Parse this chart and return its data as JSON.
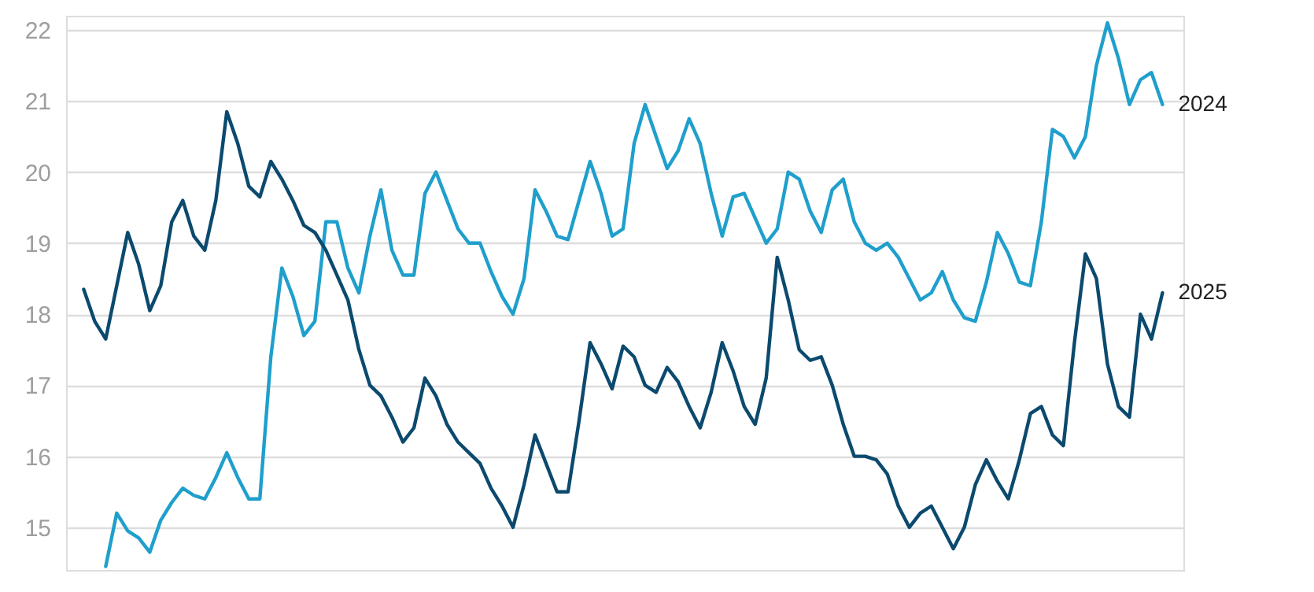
{
  "chart_data": {
    "type": "line",
    "categories": [
      null,
      null,
      null,
      null,
      null,
      null,
      null,
      null,
      null,
      null,
      null,
      null,
      null,
      null,
      null,
      null,
      null,
      null,
      null,
      null,
      null,
      null,
      null,
      null,
      null,
      null,
      null,
      null,
      null,
      null,
      null,
      null,
      null,
      null,
      null,
      null,
      null,
      null,
      null,
      null,
      null,
      null,
      null,
      null,
      null,
      null,
      null,
      null,
      null,
      null,
      null,
      null,
      null,
      null,
      null,
      null,
      null,
      null,
      null,
      null,
      null,
      null,
      null,
      null,
      null,
      null,
      null,
      null,
      null,
      null,
      null,
      null,
      null,
      null,
      null,
      null,
      null,
      null,
      null,
      null,
      null,
      null,
      null,
      null,
      null,
      null,
      null,
      null,
      null,
      null,
      null,
      null,
      null,
      null,
      null,
      null,
      null,
      null,
      null
    ],
    "series": [
      {
        "name": "2024",
        "color": "#1f9fcc",
        "values": [
          null,
          null,
          14.45,
          15.2,
          14.95,
          14.85,
          14.65,
          15.1,
          15.35,
          15.55,
          15.45,
          15.4,
          15.7,
          16.05,
          15.7,
          15.4,
          15.4,
          17.4,
          18.65,
          18.25,
          17.7,
          17.9,
          19.3,
          19.3,
          18.65,
          18.3,
          19.1,
          19.75,
          18.9,
          18.55,
          18.55,
          19.7,
          20.0,
          19.6,
          19.2,
          19.0,
          19.0,
          18.6,
          18.25,
          18.0,
          18.5,
          19.75,
          19.45,
          19.1,
          19.05,
          19.6,
          20.15,
          19.7,
          19.1,
          19.2,
          20.4,
          20.95,
          20.5,
          20.05,
          20.3,
          20.75,
          20.4,
          19.7,
          19.1,
          19.65,
          19.7,
          19.35,
          19.0,
          19.2,
          20.0,
          19.9,
          19.45,
          19.15,
          19.75,
          19.9,
          19.3,
          19.0,
          18.9,
          19.0,
          18.8,
          18.5,
          18.2,
          18.3,
          18.6,
          18.2,
          17.95,
          17.9,
          18.45,
          19.15,
          18.85,
          18.45,
          18.4,
          19.3,
          20.6,
          20.5,
          20.2,
          20.5,
          21.5,
          22.1,
          21.6,
          20.95,
          21.3,
          21.4,
          20.95
        ]
      },
      {
        "name": "2025",
        "color": "#0b4a6e",
        "values": [
          18.35,
          17.9,
          17.65,
          18.4,
          19.15,
          18.7,
          18.05,
          18.4,
          19.3,
          19.6,
          19.1,
          18.9,
          19.6,
          20.85,
          20.4,
          19.8,
          19.65,
          20.15,
          19.9,
          19.6,
          19.25,
          19.15,
          18.9,
          18.55,
          18.2,
          17.5,
          17.0,
          16.85,
          16.55,
          16.2,
          16.4,
          17.1,
          16.85,
          16.45,
          16.2,
          16.05,
          15.9,
          15.55,
          15.3,
          15.0,
          15.6,
          16.3,
          15.9,
          15.5,
          15.5,
          16.5,
          17.6,
          17.3,
          16.95,
          17.55,
          17.4,
          17.0,
          16.9,
          17.25,
          17.05,
          16.7,
          16.4,
          16.9,
          17.6,
          17.2,
          16.7,
          16.45,
          17.1,
          18.8,
          18.2,
          17.5,
          17.35,
          17.4,
          17.0,
          16.45,
          16.0,
          16.0,
          15.95,
          15.75,
          15.3,
          15.0,
          15.2,
          15.3,
          15.0,
          14.7,
          15.0,
          15.6,
          15.95,
          15.65,
          15.4,
          15.95,
          16.6,
          16.7,
          16.3,
          16.15,
          17.6,
          18.85,
          18.5,
          17.3,
          16.7,
          16.55,
          18.0,
          17.65,
          18.3
        ]
      }
    ],
    "ylim": [
      14.4,
      22.2
    ],
    "yticks": [
      15,
      16,
      17,
      18,
      19,
      20,
      21,
      22
    ],
    "grid": "y",
    "marker": "none",
    "line_style": "solid",
    "tick_labels": "y"
  }
}
